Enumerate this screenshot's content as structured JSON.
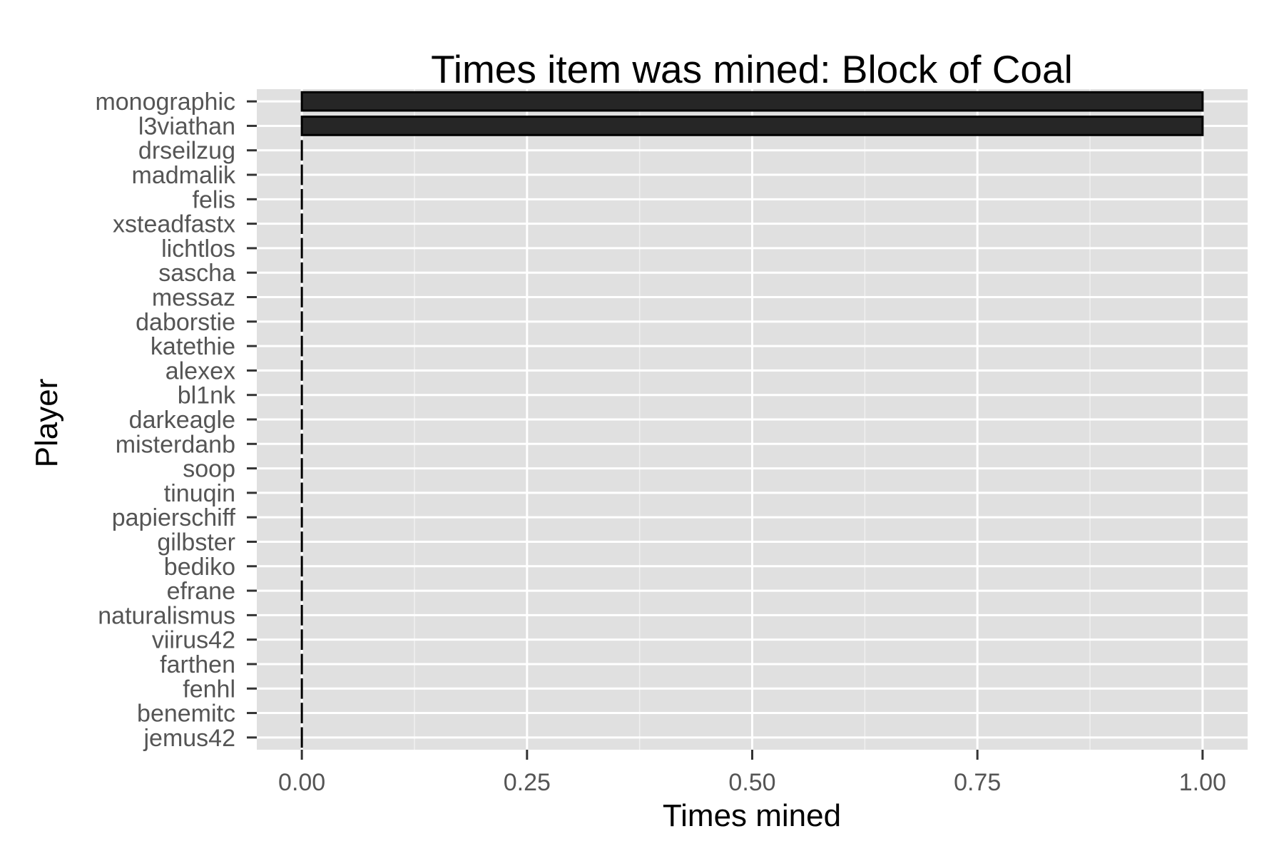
{
  "chart_data": {
    "type": "bar",
    "orientation": "horizontal",
    "title": "Times item was mined: Block of Coal",
    "xlabel": "Times mined",
    "ylabel": "Player",
    "categories": [
      "monographic",
      "l3viathan",
      "drseilzug",
      "madmalik",
      "felis",
      "xsteadfastx",
      "lichtlos",
      "sascha",
      "messaz",
      "daborstie",
      "katethie",
      "alexex",
      "bl1nk",
      "darkeagle",
      "misterdanb",
      "soop",
      "tinuqin",
      "papierschiff",
      "gilbster",
      "bediko",
      "efrane",
      "naturalismus",
      "viirus42",
      "farthen",
      "fenhl",
      "benemitc",
      "jemus42"
    ],
    "values": [
      1,
      1,
      0,
      0,
      0,
      0,
      0,
      0,
      0,
      0,
      0,
      0,
      0,
      0,
      0,
      0,
      0,
      0,
      0,
      0,
      0,
      0,
      0,
      0,
      0,
      0,
      0
    ],
    "xticks": [
      "0.00",
      "0.25",
      "0.50",
      "0.75",
      "1.00"
    ],
    "xlim": [
      -0.05,
      1.05
    ],
    "grid": true,
    "colors": {
      "panel": "#e0e0e0",
      "grid": "#ffffff",
      "bar_fill": "#262626",
      "bar_outline": "#000000"
    }
  }
}
